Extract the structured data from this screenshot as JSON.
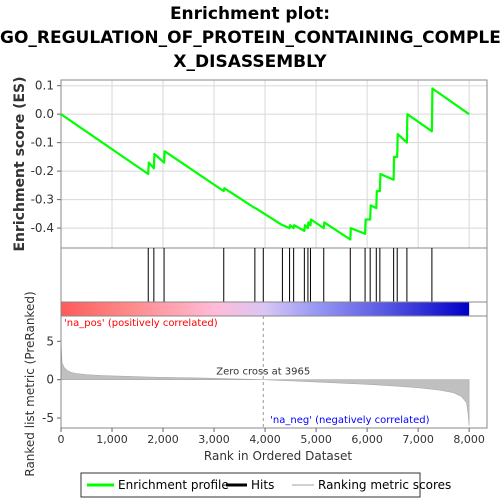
{
  "chart_data": {
    "type": "line",
    "title_lines": [
      "Enrichment plot:",
      "GO_REGULATION_OF_PROTEIN_CONTAINING_COMPLE",
      "X_DISASSEMBLY"
    ],
    "xlabel": "Rank in Ordered Dataset",
    "xlim": [
      0,
      8350
    ],
    "x_ticks": [
      0,
      1000,
      2000,
      3000,
      4000,
      5000,
      6000,
      7000,
      8000
    ],
    "x_tick_labels": [
      "0",
      "1,000",
      "2,000",
      "3,000",
      "4,000",
      "5,000",
      "6,000",
      "7,000",
      "8,000"
    ],
    "es_panel": {
      "ylabel": "Enrichment score (ES)",
      "ylim": [
        -0.47,
        0.12
      ],
      "y_ticks": [
        0.1,
        0.0,
        -0.1,
        -0.2,
        -0.3,
        -0.4
      ],
      "y_tick_labels": [
        "0.1",
        "0.0",
        "-0.1",
        "-0.2",
        "-0.3",
        "-0.4"
      ],
      "grid": true,
      "series": [
        {
          "name": "Enrichment profile",
          "color": "#00ff00",
          "x": [
            0,
            1710,
            1720,
            1820,
            1830,
            2020,
            2030,
            3190,
            3200,
            3800,
            3810,
            4340,
            4350,
            4480,
            4490,
            4560,
            4570,
            4770,
            4780,
            4840,
            4850,
            4890,
            4900,
            5150,
            5160,
            5670,
            5680,
            5960,
            5970,
            6060,
            6070,
            6180,
            6190,
            6250,
            6260,
            6520,
            6530,
            6590,
            6600,
            6780,
            6790,
            7270,
            7280,
            8000
          ],
          "y": [
            0.0,
            -0.21,
            -0.17,
            -0.19,
            -0.14,
            -0.17,
            -0.13,
            -0.27,
            -0.26,
            -0.33,
            -0.33,
            -0.39,
            -0.39,
            -0.4,
            -0.39,
            -0.4,
            -0.39,
            -0.41,
            -0.39,
            -0.4,
            -0.38,
            -0.39,
            -0.37,
            -0.4,
            -0.38,
            -0.44,
            -0.4,
            -0.42,
            -0.37,
            -0.37,
            -0.32,
            -0.33,
            -0.27,
            -0.27,
            -0.21,
            -0.23,
            -0.15,
            -0.15,
            -0.07,
            -0.1,
            0.0,
            -0.06,
            0.09,
            0.0
          ]
        }
      ]
    },
    "hits": {
      "name": "Hits",
      "x": [
        1710,
        1820,
        2020,
        3190,
        3800,
        3965,
        4340,
        4480,
        4560,
        4770,
        4840,
        4890,
        5150,
        5670,
        5960,
        6060,
        6180,
        6250,
        6520,
        6590,
        6780,
        7270
      ]
    },
    "color_bar": {
      "stops": [
        "#ff5a5a",
        "#ff8a8a",
        "#ffbcd8",
        "#d9c6f4",
        "#9a9af4",
        "#5555e4",
        "#0000c8"
      ],
      "label_pos": "'na_pos' (positively correlated)",
      "label_neg": "'na_neg' (negatively correlated)",
      "label_pos_color": "#ff0000",
      "label_neg_color": "#0000ff"
    },
    "metric_panel": {
      "ylabel": "Ranked list metric (PreRanked)",
      "ylim": [
        -6.3,
        8.3
      ],
      "y_ticks": [
        5,
        0,
        -5
      ],
      "y_tick_labels": [
        "5",
        "0",
        "-5"
      ],
      "zero_cross": 3965,
      "zero_cross_label": "Zero cross at 3965",
      "x": [
        0,
        20,
        60,
        120,
        200,
        300,
        500,
        800,
        1200,
        1700,
        2200,
        2800,
        3400,
        3965,
        4500,
        5200,
        6000,
        6600,
        7000,
        7400,
        7700,
        7850,
        7950,
        7980,
        8000
      ],
      "y": [
        5.2,
        2.2,
        1.6,
        1.2,
        0.95,
        0.8,
        0.65,
        0.55,
        0.45,
        0.35,
        0.28,
        0.2,
        0.1,
        0.0,
        -0.15,
        -0.35,
        -0.6,
        -0.85,
        -1.05,
        -1.35,
        -1.7,
        -2.2,
        -3.0,
        -4.4,
        -6.0
      ],
      "fill_color": "#c0c0c0"
    },
    "legend": [
      {
        "label": "Enrichment profile",
        "color": "#00ff00"
      },
      {
        "label": "Hits",
        "color": "#000000"
      },
      {
        "label": "Ranking metric scores",
        "color": "#c0c0c0"
      }
    ]
  }
}
